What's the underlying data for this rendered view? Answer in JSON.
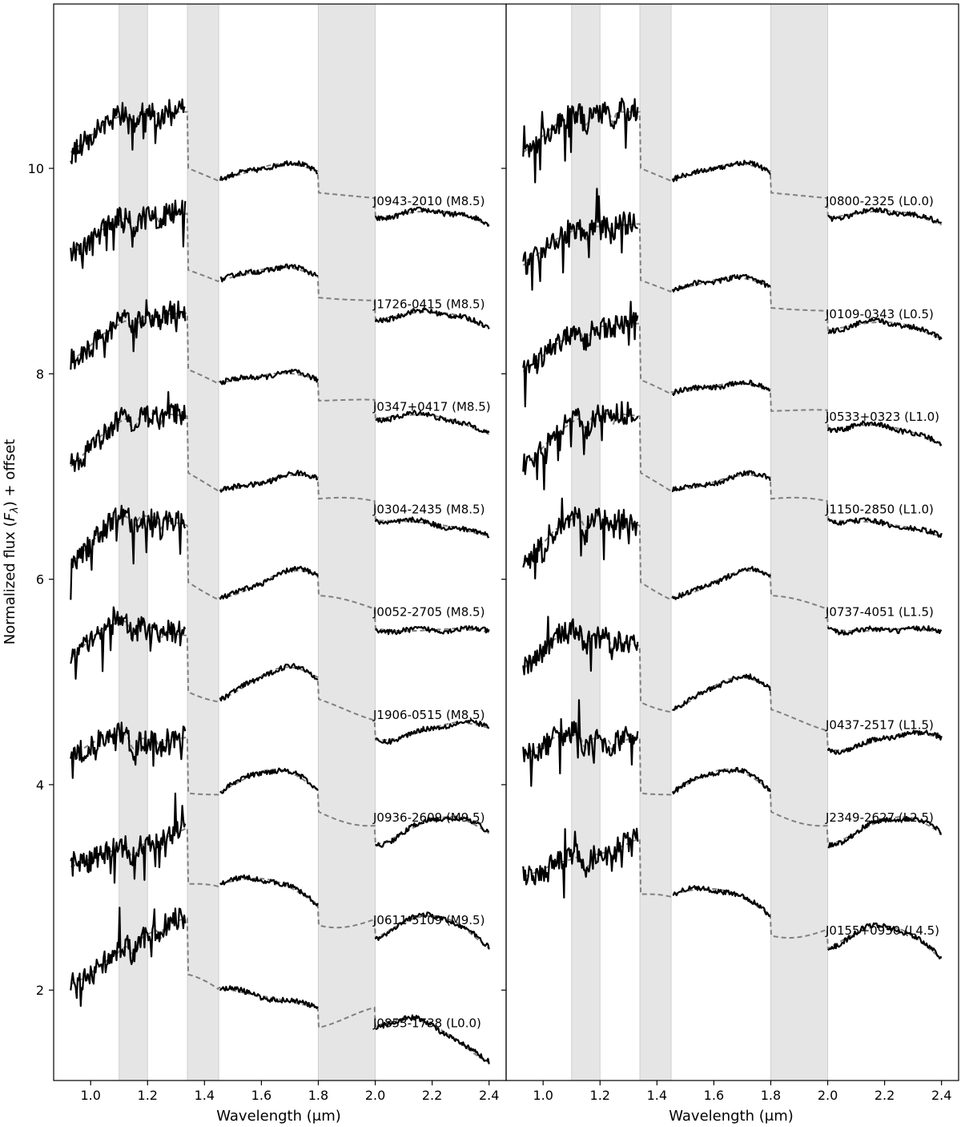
{
  "chart_data": [
    {
      "type": "line",
      "panel": "left",
      "xlabel": "Wavelength (μm)",
      "ylabel": "Normalized flux (F_λ) + offset",
      "xlim": [
        0.87,
        2.46
      ],
      "ylim": [
        1.12,
        11.6
      ],
      "xticks": [
        "1.0",
        "1.2",
        "1.4",
        "1.6",
        "1.8",
        "2.0",
        "2.2",
        "2.4"
      ],
      "yticks": [
        "2",
        "4",
        "6",
        "8",
        "10"
      ],
      "shaded_regions": [
        [
          1.1,
          1.2
        ],
        [
          1.34,
          1.45
        ],
        [
          1.8,
          2.0
        ]
      ],
      "line_styles": {
        "observed": "solid black",
        "template": "dashed gray"
      },
      "series": [
        {
          "label": "J0943-2010 (M8.5)",
          "offset": 9.5
        },
        {
          "label": "J1726-0415 (M8.5)",
          "offset": 8.5
        },
        {
          "label": "J0347+0417 (M8.5)",
          "offset": 7.5
        },
        {
          "label": "J0304-2435 (M8.5)",
          "offset": 6.5
        },
        {
          "label": "J0052-2705 (M8.5)",
          "offset": 5.5
        },
        {
          "label": "J1906-0515 (M8.5)",
          "offset": 4.5
        },
        {
          "label": "J0936-2609 (M9.5)",
          "offset": 3.5
        },
        {
          "label": "J0611-5109 (M9.5)",
          "offset": 2.5
        },
        {
          "label": "J0853-1738 (L0.0)",
          "offset": 1.5
        }
      ]
    },
    {
      "type": "line",
      "panel": "right",
      "xlabel": "Wavelength (μm)",
      "xlim": [
        0.87,
        2.46
      ],
      "ylim": [
        1.12,
        11.6
      ],
      "xticks": [
        "1.0",
        "1.2",
        "1.4",
        "1.6",
        "1.8",
        "2.0",
        "2.2",
        "2.4"
      ],
      "shaded_regions": [
        [
          1.1,
          1.2
        ],
        [
          1.34,
          1.45
        ],
        [
          1.8,
          2.0
        ]
      ],
      "line_styles": {
        "observed": "solid black",
        "template": "dashed gray"
      },
      "series": [
        {
          "label": "J0800-2325 (L0.0)",
          "offset": 9.5
        },
        {
          "label": "J0109-0343 (L0.5)",
          "offset": 8.4
        },
        {
          "label": "J0533+0323 (L1.0)",
          "offset": 7.4
        },
        {
          "label": "J1150-2850 (L1.0)",
          "offset": 6.5
        },
        {
          "label": "J0737-4051 (L1.5)",
          "offset": 5.5
        },
        {
          "label": "J0437-2517 (L1.5)",
          "offset": 4.4
        },
        {
          "label": "J2349-2627 (L2.5)",
          "offset": 3.5
        },
        {
          "label": "J0155+0950 (L4.5)",
          "offset": 2.4
        }
      ]
    }
  ]
}
